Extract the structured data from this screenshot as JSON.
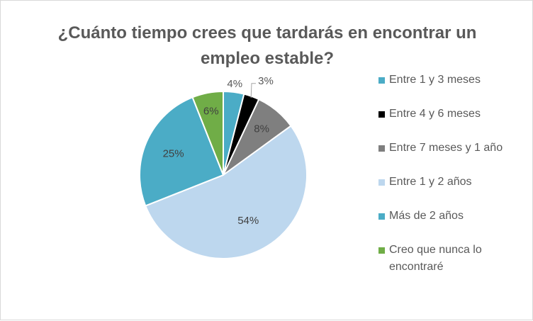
{
  "chart_data": {
    "type": "pie",
    "title": "¿Cuánto tiempo crees que tardarás en encontrar un empleo estable?",
    "legend_position": "right",
    "categories": [
      "Entre 1 y 3 meses",
      "Entre 4 y 6 meses",
      "Entre  7 meses y 1 año",
      "Entre 1 y 2 años",
      "Más de 2 años",
      "Creo que nunca lo encontraré"
    ],
    "values": [
      4,
      3,
      8,
      54,
      25,
      6
    ],
    "labels": [
      "4%",
      "3%",
      "8%",
      "54%",
      "25%",
      "6%"
    ],
    "colors": [
      "#4bacc6",
      "#000000",
      "#7f7f7f",
      "#bdd7ee",
      "#4bacc6",
      "#70ad47"
    ]
  }
}
